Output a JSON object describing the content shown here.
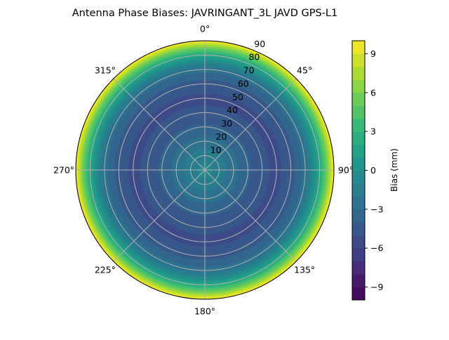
{
  "chart_data": {
    "type": "polar-contour",
    "title": "Antenna Phase Biases: JAVRINGANT_3L   JAVD GPS-L1",
    "theta_direction": "clockwise",
    "theta_zero": "top",
    "theta_tick_labels": [
      "0°",
      "45°",
      "90°",
      "135°",
      "180°",
      "225°",
      "270°",
      "315°"
    ],
    "theta_ticks": [
      0,
      45,
      90,
      135,
      180,
      225,
      270,
      315
    ],
    "r_ticks": [
      10,
      20,
      30,
      40,
      50,
      60,
      70,
      80,
      90
    ],
    "r_tick_labels": [
      "10",
      "20",
      "30",
      "40",
      "50",
      "60",
      "70",
      "80",
      "90"
    ],
    "rlim": [
      0,
      90
    ],
    "grid": true,
    "colormap": "viridis",
    "levels_range": [
      -10,
      10
    ],
    "level_step": 1,
    "colorbar": {
      "label": "Bias (mm)",
      "ticks": [
        -9,
        -6,
        -3,
        0,
        3,
        6,
        9
      ],
      "tick_labels": [
        "−9",
        "−6",
        "−3",
        "0",
        "3",
        "6",
        "9"
      ],
      "range": [
        -10,
        10
      ]
    },
    "radial_profile": {
      "zenith_deg": [
        0,
        10,
        20,
        30,
        40,
        50,
        60,
        70,
        75,
        80,
        85,
        90
      ],
      "bias_mm": [
        -0.5,
        -1.5,
        -2.6,
        -3.8,
        -4.8,
        -5.2,
        -4.6,
        -2.6,
        -0.8,
        1.8,
        5.5,
        10
      ]
    }
  }
}
